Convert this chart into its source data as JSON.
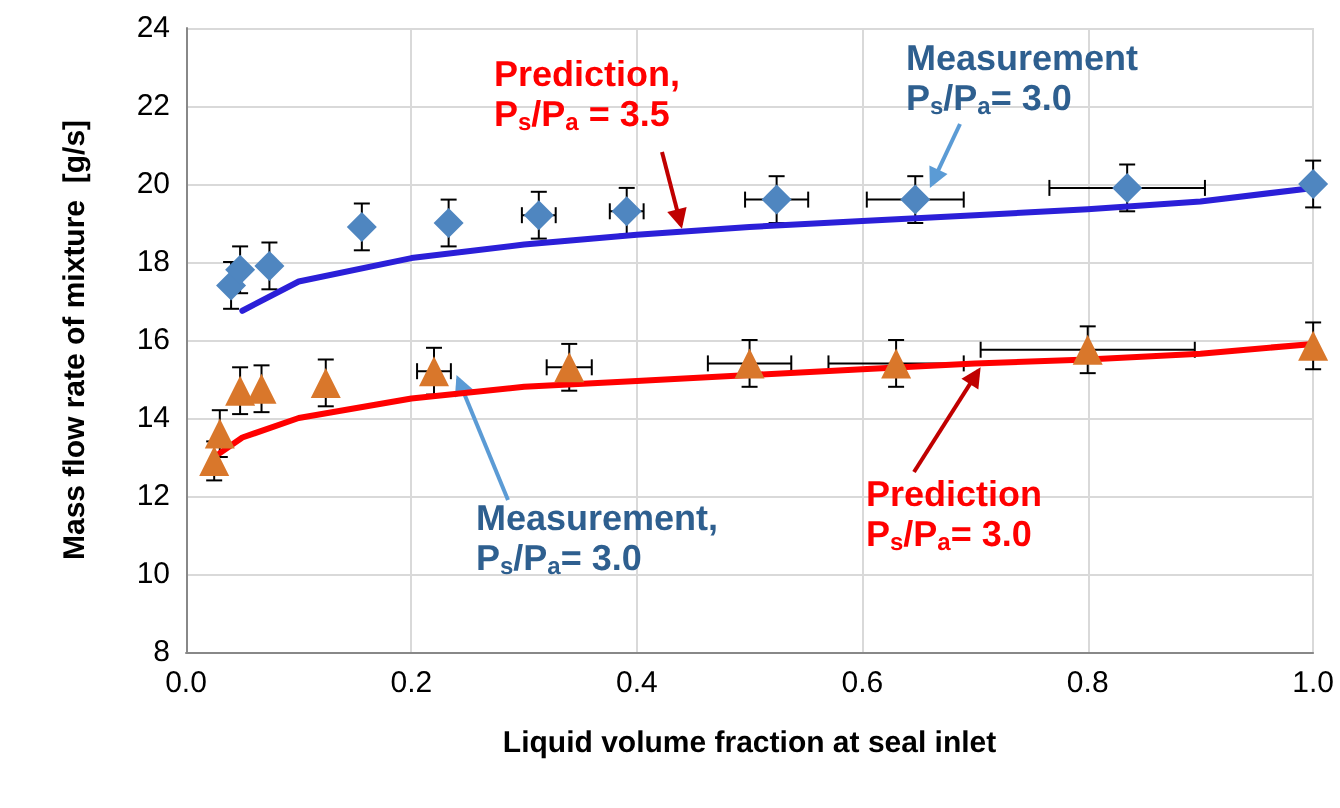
{
  "chart_data": {
    "type": "scatter",
    "xlabel": "Liquid volume fraction at seal inlet",
    "ylabel": "Mass flow rate of mixture  [g/s]",
    "xlim": [
      0,
      1
    ],
    "xticks": [
      {
        "value": 0,
        "label": "0.0"
      },
      {
        "value": 0.2,
        "label": "0.2"
      },
      {
        "value": 0.4,
        "label": "0.4"
      },
      {
        "value": 0.6,
        "label": "0.6"
      },
      {
        "value": 0.8,
        "label": "0.8"
      },
      {
        "value": 1,
        "label": "1.0"
      }
    ],
    "ylim": [
      8,
      24
    ],
    "yticks": [
      8,
      10,
      12,
      14,
      16,
      18,
      20,
      22,
      24
    ],
    "grid": true,
    "series": [
      {
        "marker": "diamond",
        "color": "#4f86c0",
        "x": [
          0.04,
          0.048,
          0.074,
          0.156,
          0.233,
          0.313,
          0.391,
          0.524,
          0.647,
          0.835,
          1.0
        ],
        "values": [
          17.4,
          17.8,
          17.9,
          18.9,
          19.0,
          19.2,
          19.3,
          19.6,
          19.6,
          19.9,
          20.0
        ],
        "errors": [
          0.6,
          0.6,
          0.6,
          0.6,
          0.6,
          0.6,
          0.6,
          0.6,
          0.6,
          0.6,
          0.6
        ],
        "xerrors": [
          null,
          null,
          null,
          null,
          null,
          0.015,
          0.015,
          0.028,
          0.043,
          0.069,
          null
        ]
      },
      {
        "marker": "triangle",
        "color": "#d9772b",
        "x": [
          0.025,
          0.03,
          0.048,
          0.067,
          0.124,
          0.22,
          0.34,
          0.5,
          0.63,
          0.8,
          1.0
        ],
        "values": [
          12.9,
          13.6,
          14.7,
          14.75,
          14.9,
          15.2,
          15.3,
          15.4,
          15.4,
          15.75,
          15.85
        ],
        "errors": [
          0.5,
          0.6,
          0.6,
          0.6,
          0.6,
          0.6,
          0.6,
          0.6,
          0.6,
          0.6,
          0.6
        ],
        "xerrors": [
          null,
          null,
          null,
          null,
          null,
          0.015,
          0.02,
          0.037,
          0.06,
          0.095,
          null
        ]
      },
      {
        "type": "line",
        "marker": "none",
        "color": "#2b1fd8",
        "x": [
          0.05,
          0.1,
          0.2,
          0.3,
          0.4,
          0.5,
          0.6,
          0.7,
          0.8,
          0.9,
          1.0
        ],
        "values": [
          16.75,
          17.5,
          18.1,
          18.45,
          18.7,
          18.9,
          19.05,
          19.2,
          19.35,
          19.55,
          19.9
        ]
      },
      {
        "type": "line",
        "marker": "none",
        "color": "#ff0000",
        "x": [
          0.03,
          0.05,
          0.1,
          0.2,
          0.3,
          0.4,
          0.5,
          0.6,
          0.7,
          0.8,
          0.9,
          1.0
        ],
        "values": [
          13.1,
          13.5,
          14.0,
          14.5,
          14.8,
          14.95,
          15.1,
          15.25,
          15.4,
          15.5,
          15.65,
          15.9
        ]
      }
    ],
    "annotations": [
      {
        "text": "Prediction,\nP$_{s}$/P$_{a}$ = 3.5",
        "x": 0.44,
        "y": 18.85
      },
      {
        "text": "Measurement\nP$_{s}$/P$_{a}$= 3.0",
        "x": 0.66,
        "y": 19.9
      },
      {
        "text": "Measurement,\nP$_{s}$/P$_{a}$= 3.0",
        "x": 0.24,
        "y": 15.1
      },
      {
        "text": "Prediction\nP$_{s}$/P$_{a}$= 3.0",
        "x": 0.705,
        "y": 15.3
      }
    ]
  }
}
